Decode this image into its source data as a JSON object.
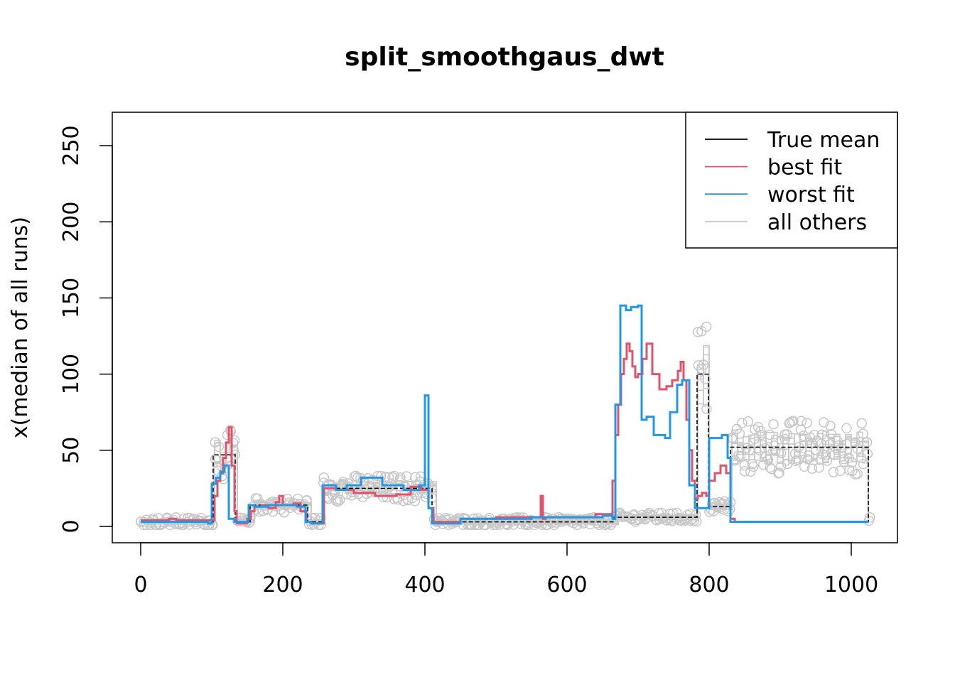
{
  "chart_data": {
    "type": "line",
    "title": "split_smoothgaus_dwt",
    "xlabel": "",
    "ylabel": "x(median of all runs)",
    "xlim": [
      0,
      1024
    ],
    "ylim": [
      0,
      255
    ],
    "xticks": [
      0,
      200,
      400,
      600,
      800,
      1000
    ],
    "yticks": [
      0,
      50,
      100,
      150,
      200,
      250
    ],
    "grid": false,
    "legend_position": "top-right",
    "legend": [
      {
        "label": "True mean",
        "color": "#000000"
      },
      {
        "label": "best fit",
        "color": "#DF536B"
      },
      {
        "label": "worst fit",
        "color": "#2297E6"
      },
      {
        "label": "all others",
        "color": "#C8C8C8"
      }
    ],
    "series": [
      {
        "name": "True mean",
        "color": "#000000",
        "step": true,
        "dashed": true,
        "x": [
          0,
          102,
          133,
          154,
          235,
          256,
          410,
          666,
          783,
          799,
          830,
          1024
        ],
        "y": [
          3,
          47,
          3,
          14,
          3,
          25,
          3,
          6,
          100,
          13,
          52,
          3
        ]
      },
      {
        "name": "best fit",
        "color": "#DF536B",
        "step": true,
        "x": [
          0,
          40,
          50,
          100,
          104,
          108,
          112,
          116,
          120,
          124,
          128,
          132,
          135,
          150,
          155,
          160,
          170,
          180,
          190,
          195,
          200,
          215,
          225,
          233,
          240,
          258,
          275,
          300,
          330,
          360,
          380,
          395,
          405,
          412,
          440,
          450,
          500,
          560,
          563,
          566,
          570,
          600,
          640,
          664,
          668,
          672,
          676,
          680,
          684,
          688,
          692,
          696,
          700,
          706,
          712,
          720,
          730,
          740,
          748,
          756,
          760,
          764,
          768,
          772,
          776,
          780,
          784,
          790,
          796,
          800,
          808,
          816,
          824,
          830,
          836,
          900,
          1024
        ],
        "y": [
          4,
          5,
          4,
          4,
          20,
          30,
          35,
          45,
          55,
          65,
          40,
          10,
          2,
          5,
          10,
          13,
          14,
          12,
          16,
          20,
          14,
          15,
          10,
          3,
          2,
          25,
          24,
          22,
          20,
          21,
          26,
          24,
          12,
          3,
          3,
          5,
          6,
          6,
          20,
          5,
          6,
          6,
          8,
          30,
          60,
          80,
          100,
          110,
          120,
          115,
          105,
          98,
          100,
          110,
          120,
          100,
          90,
          92,
          96,
          102,
          108,
          96,
          70,
          50,
          30,
          18,
          20,
          22,
          20,
          30,
          35,
          40,
          35,
          5,
          3,
          3,
          3
        ]
      },
      {
        "name": "worst fit",
        "color": "#2297E6",
        "step": true,
        "x": [
          0,
          95,
          100,
          106,
          112,
          118,
          124,
          132,
          152,
          160,
          180,
          220,
          232,
          240,
          256,
          275,
          290,
          310,
          340,
          370,
          392,
          400,
          405,
          410,
          450,
          550,
          600,
          650,
          664,
          668,
          675,
          683,
          690,
          700,
          705,
          712,
          722,
          738,
          745,
          755,
          762,
          772,
          780,
          800,
          818,
          826,
          830,
          1024
        ],
        "y": [
          3,
          2,
          28,
          32,
          36,
          40,
          5,
          3,
          14,
          13,
          14,
          13,
          3,
          2,
          27,
          24,
          27,
          32,
          27,
          24,
          27,
          86,
          12,
          2,
          5,
          6,
          6,
          7,
          5,
          80,
          145,
          142,
          144,
          145,
          70,
          72,
          60,
          58,
          75,
          93,
          96,
          27,
          12,
          58,
          60,
          45,
          3,
          3
        ]
      }
    ]
  }
}
